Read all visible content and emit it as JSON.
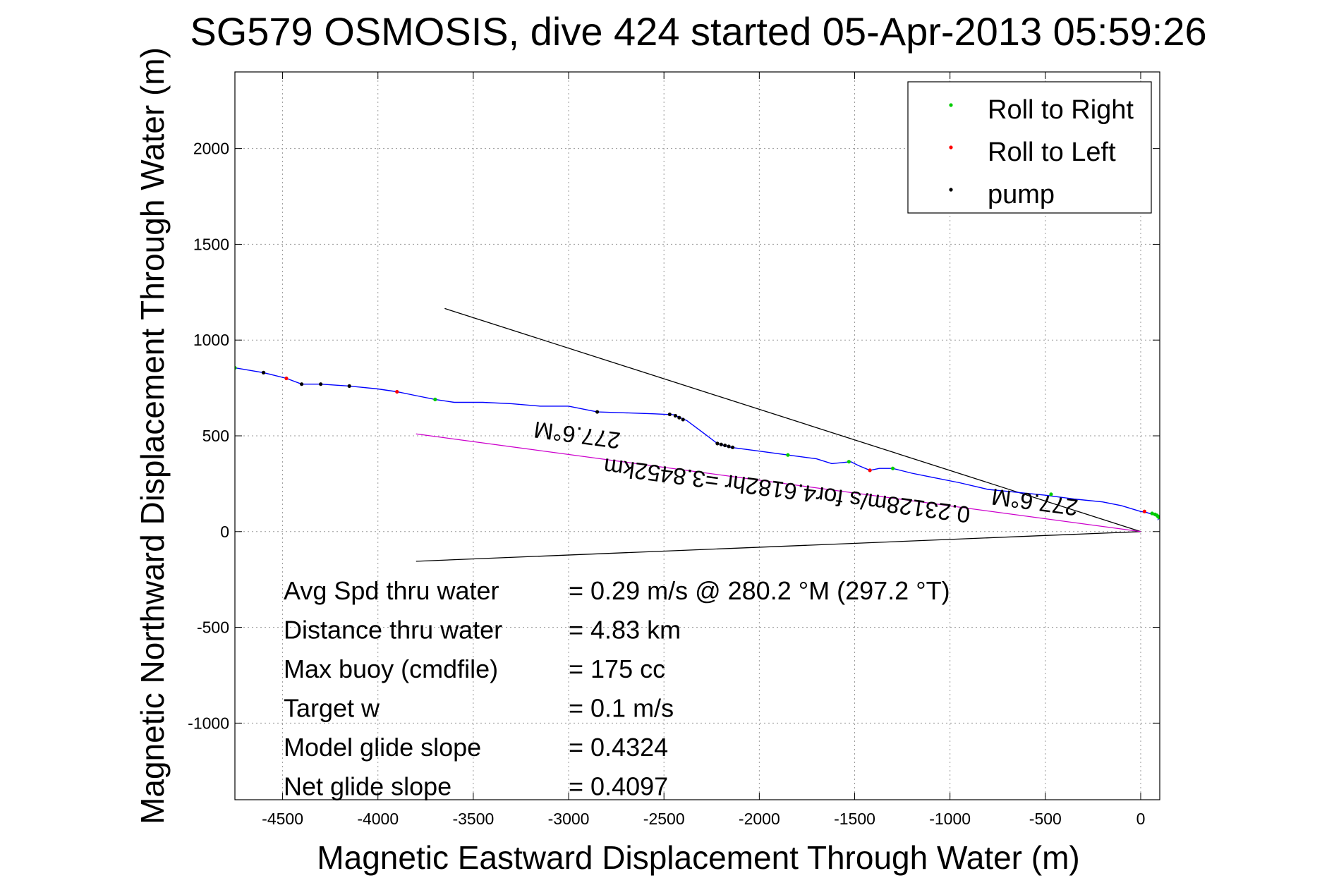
{
  "chart_data": {
    "type": "line",
    "title": "SG579 OSMOSIS, dive 424 started 05-Apr-2013 05:59:26",
    "xlabel": "Magnetic Eastward Displacement Through Water (m)",
    "ylabel": "Magnetic Northward Displacement Through Water (m)",
    "xlim": [
      -4750,
      100
    ],
    "ylim": [
      -1400,
      2400
    ],
    "xticks": [
      -4500,
      -4000,
      -3500,
      -3000,
      -2500,
      -2000,
      -1500,
      -1000,
      -500,
      0
    ],
    "yticks": [
      -1000,
      -500,
      0,
      500,
      1000,
      1500,
      2000
    ],
    "grid": true,
    "legend_position": "top-right",
    "legend": [
      {
        "label": "Roll to Right",
        "color": "#00cc00"
      },
      {
        "label": "Roll to Left",
        "color": "#ff0000"
      },
      {
        "label": "pump",
        "color": "#000000"
      }
    ],
    "track": {
      "color": "#0000ff",
      "x": [
        -4750,
        -4600,
        -4480,
        -4400,
        -4300,
        -4150,
        -4000,
        -3900,
        -3800,
        -3700,
        -3600,
        -3450,
        -3300,
        -3150,
        -3000,
        -2850,
        -2700,
        -2550,
        -2450,
        -2380,
        -2300,
        -2220,
        -2150,
        -2000,
        -1850,
        -1700,
        -1620,
        -1520,
        -1480,
        -1420,
        -1370,
        -1300,
        -1200,
        -1100,
        -950,
        -800,
        -650,
        -500,
        -350,
        -200,
        -100,
        0,
        30,
        60,
        80,
        100,
        95,
        90
      ],
      "y": [
        855,
        830,
        800,
        770,
        770,
        760,
        745,
        730,
        710,
        690,
        675,
        675,
        668,
        655,
        655,
        625,
        620,
        615,
        610,
        580,
        520,
        460,
        440,
        420,
        400,
        380,
        355,
        365,
        345,
        320,
        330,
        330,
        305,
        285,
        255,
        220,
        205,
        190,
        170,
        155,
        135,
        105,
        100,
        90,
        85,
        75,
        70,
        60
      ]
    },
    "roll_right": {
      "x": [
        -4750,
        -3700,
        -1850,
        -1530,
        -1300,
        -470,
        60,
        75,
        85,
        90,
        95
      ],
      "y": [
        855,
        690,
        400,
        365,
        330,
        195,
        95,
        90,
        85,
        80,
        75
      ]
    },
    "roll_left": {
      "x": [
        -4480,
        -3900,
        -1420,
        20
      ],
      "y": [
        800,
        730,
        320,
        105
      ]
    },
    "pump": {
      "x": [
        -4600,
        -4400,
        -4300,
        -4150,
        -2850,
        -2470,
        -2440,
        -2420,
        -2400,
        -2220,
        -2200,
        -2180,
        -2160,
        -2140
      ],
      "y": [
        830,
        770,
        770,
        760,
        625,
        612,
        605,
        595,
        585,
        460,
        455,
        450,
        445,
        440
      ]
    },
    "heading_lines": [
      {
        "color": "#000000",
        "x": [
          0,
          -3650
        ],
        "y": [
          0,
          1165
        ]
      },
      {
        "color": "#000000",
        "x": [
          0,
          -3800
        ],
        "y": [
          0,
          -155
        ]
      },
      {
        "color": "#cc00cc",
        "x": [
          0,
          -3800
        ],
        "y": [
          0,
          510
        ]
      }
    ],
    "annotations": [
      {
        "text": "277.6°M",
        "x": -2950,
        "y": 545,
        "rotation": 187.6
      },
      {
        "text": "0.23128m/s for4.6182hr =3.8452km",
        "x": -1850,
        "y": 255,
        "rotation": 187.6
      },
      {
        "text": "277.6°M",
        "x": -550,
        "y": 195,
        "rotation": 187.6
      }
    ],
    "stats": [
      {
        "label": "Avg Spd thru water",
        "value": "=  0.29 m/s @ 280.2 °M (297.2 °T)"
      },
      {
        "label": "Distance thru water",
        "value": "=  4.83 km"
      },
      {
        "label": "Max buoy (cmdfile)",
        "value": "= 175 cc"
      },
      {
        "label": "Target w",
        "value": "= 0.1 m/s"
      },
      {
        "label": "Model glide slope",
        "value": "= 0.4324"
      },
      {
        "label": "Net glide slope",
        "value": "= 0.4097"
      }
    ]
  }
}
